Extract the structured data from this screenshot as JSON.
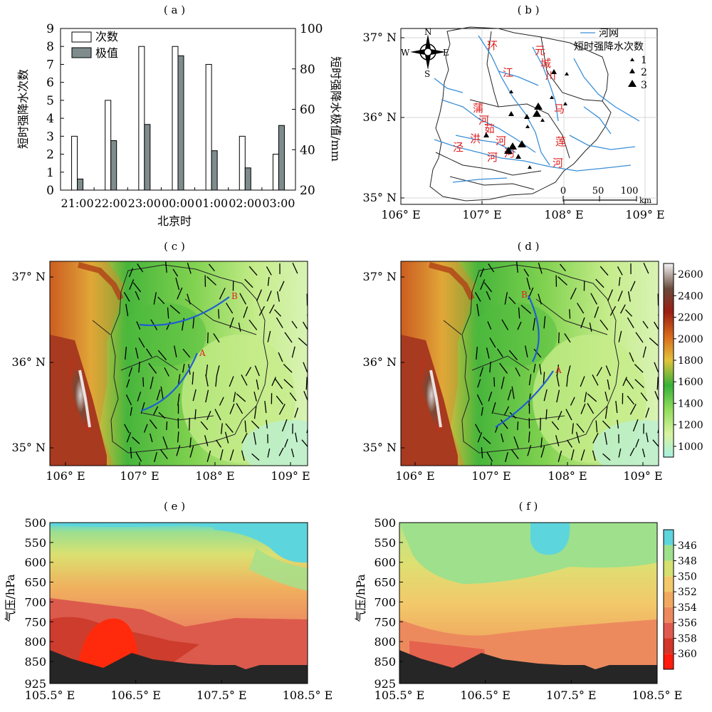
{
  "figure": {
    "panel_labels": [
      "( a )",
      "( b )",
      "( c )",
      "( d )",
      "( e )",
      "( f )"
    ]
  },
  "chart_data": [
    {
      "panel": "a",
      "type": "bar",
      "categories": [
        "21:00",
        "22:00",
        "23:00",
        "00:00",
        "01:00",
        "02:00",
        "03:00"
      ],
      "xlabel": "北京时",
      "ylabel": "短时强降水次数",
      "ylabel_right": "短时强降水极值/mm",
      "ylim": [
        0,
        9
      ],
      "ylim_right": [
        20,
        100
      ],
      "yticks": [
        "0",
        "1",
        "2",
        "3",
        "4",
        "5",
        "6",
        "7",
        "8",
        "9"
      ],
      "yticks_right": [
        "20",
        "40",
        "60",
        "80",
        "100"
      ],
      "series": [
        {
          "name": "次数",
          "axis": "left",
          "color": "#ffffff",
          "values": [
            3,
            5,
            8,
            8,
            7,
            3,
            2
          ]
        },
        {
          "name": "极值",
          "axis": "right",
          "color": "#7f8c8d",
          "values": [
            25.5,
            44.5,
            52.5,
            86.5,
            39.5,
            31,
            52
          ]
        }
      ],
      "legend": "top-left"
    },
    {
      "panel": "b",
      "type": "map",
      "lon_ticks": [
        "106° E",
        "107° E",
        "108° E",
        "109° E"
      ],
      "lat_ticks": [
        "37° N",
        "36° N",
        "35° N"
      ],
      "legend_title": "短时强降水次数",
      "legend_river": "河网",
      "legend_counts": [
        "1",
        "2",
        "3"
      ],
      "compass": [
        "N",
        "S",
        "W",
        "E"
      ],
      "scale_labels": [
        "0",
        "50",
        "100"
      ],
      "scale_unit": "km",
      "river_labels": [
        "环",
        "江",
        "元",
        "城",
        "川",
        "蒲",
        "河",
        "茹",
        "河",
        "洪",
        "河",
        "泾",
        "河",
        "马",
        "莲",
        "河",
        "河"
      ]
    },
    {
      "panel": "c",
      "type": "map",
      "lon_ticks": [
        "106° E",
        "107° E",
        "108° E",
        "109° E"
      ],
      "lat_ticks": [
        "37° N",
        "36° N",
        "35° N"
      ],
      "line_labels": [
        "A",
        "B"
      ]
    },
    {
      "panel": "d",
      "type": "map",
      "lon_ticks": [
        "106° E",
        "107° E",
        "108° E",
        "109° E"
      ],
      "lat_ticks": [
        "37° N",
        "36° N",
        "35° N"
      ],
      "line_labels": [
        "A",
        "B"
      ],
      "colorbar": [
        "1000",
        "1200",
        "1400",
        "1600",
        "1800",
        "2000",
        "2200",
        "2400",
        "2600"
      ]
    },
    {
      "panel": "e",
      "type": "heatmap",
      "ylabel": "气压/hPa",
      "yticks": [
        "500",
        "550",
        "600",
        "650",
        "700",
        "750",
        "800",
        "850",
        "925"
      ],
      "xticks": [
        "105.5° E",
        "106.5° E",
        "107.5° E",
        "108.5° E"
      ]
    },
    {
      "panel": "f",
      "type": "heatmap",
      "ylabel": "气压/hPa",
      "yticks": [
        "500",
        "550",
        "600",
        "650",
        "700",
        "750",
        "800",
        "850",
        "925"
      ],
      "xticks": [
        "105.5° E",
        "106.5° E",
        "107.5° E",
        "108.5° E"
      ],
      "colorbar": [
        "346",
        "348",
        "350",
        "352",
        "354",
        "356",
        "358",
        "360"
      ]
    }
  ]
}
